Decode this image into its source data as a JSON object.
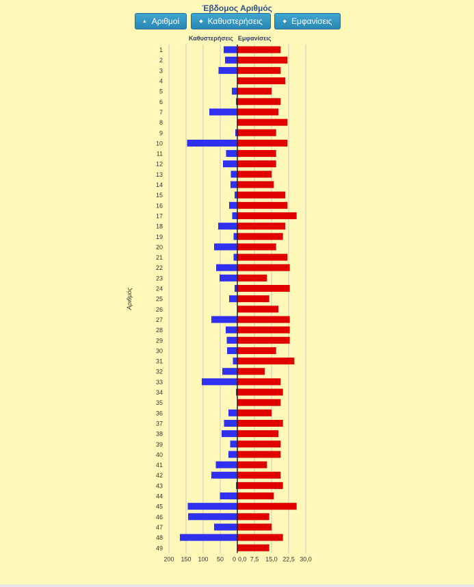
{
  "page": {
    "title": "Έβδομος Αριθμός"
  },
  "buttons": [
    {
      "label": "Αριθμοί",
      "icon": "sort-up-icon"
    },
    {
      "label": "Καθυστερήσεις",
      "icon": "sort-both-icon"
    },
    {
      "label": "Εμφανίσεις",
      "icon": "sort-both-icon"
    }
  ],
  "chart_data": {
    "type": "bar",
    "orientation": "horizontal-diverging",
    "ylabel": "Αριθμός",
    "colors": {
      "delays": "#3030f0",
      "appearances": "#e00000",
      "grid": "#c8c8c8"
    },
    "categories": [
      "1",
      "2",
      "3",
      "4",
      "5",
      "6",
      "7",
      "8",
      "9",
      "10",
      "11",
      "12",
      "13",
      "14",
      "15",
      "16",
      "17",
      "18",
      "19",
      "20",
      "21",
      "22",
      "23",
      "24",
      "25",
      "26",
      "27",
      "28",
      "29",
      "30",
      "31",
      "32",
      "33",
      "34",
      "35",
      "36",
      "37",
      "38",
      "39",
      "40",
      "41",
      "42",
      "43",
      "44",
      "45",
      "46",
      "47",
      "48",
      "49"
    ],
    "series": [
      {
        "name": "Καθυστερήσεις",
        "axis_ticks": [
          "200",
          "150",
          "100",
          "50",
          "0"
        ],
        "xlim": [
          0,
          200
        ],
        "values": [
          40,
          36,
          55,
          0,
          16,
          4,
          82,
          0,
          6,
          147,
          33,
          42,
          19,
          20,
          8,
          24,
          15,
          56,
          11,
          68,
          11,
          62,
          52,
          8,
          24,
          0,
          76,
          34,
          31,
          30,
          13,
          44,
          104,
          4,
          0,
          26,
          39,
          46,
          21,
          26,
          63,
          76,
          4,
          51,
          145,
          144,
          68,
          168,
          0
        ]
      },
      {
        "name": "Εμφανίσεις",
        "axis_ticks": [
          "0,0",
          "7,5",
          "15,0",
          "22,5",
          "30,0"
        ],
        "xlim": [
          0,
          30
        ],
        "values": [
          19,
          22,
          19,
          21,
          15,
          19,
          18,
          22,
          17,
          22,
          17,
          17,
          15,
          16,
          21,
          22,
          26,
          21,
          20,
          17,
          22,
          23,
          13,
          23,
          14,
          18,
          23,
          23,
          23,
          17,
          25,
          12,
          19,
          20,
          19,
          15,
          20,
          18,
          19,
          19,
          13,
          19,
          20,
          16,
          26,
          14,
          15,
          20,
          14
        ]
      }
    ]
  }
}
